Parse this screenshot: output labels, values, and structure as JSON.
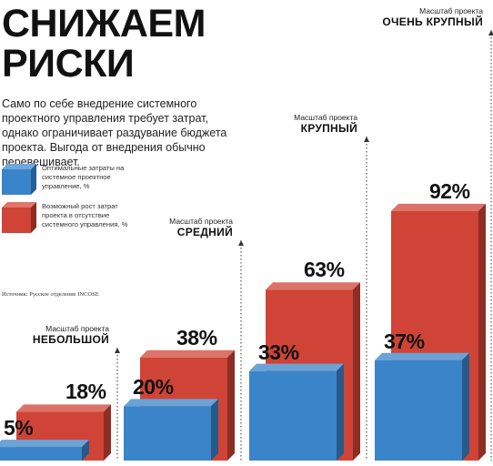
{
  "header": {
    "title": "СНИЖАЕМ\nРИСКИ",
    "intro": "Само по себе внедрение системного проектного управления требует затрат, однако ограничивает раздувание бюджета проекта. Выгода от внедрения обычно перевешивает."
  },
  "legend": [
    {
      "label": "Оптимальные затраты на системное проектное управление, %",
      "color": "#3a84c9"
    },
    {
      "label": "Возможный рост затрат проекта в отсутствие системного управления, %",
      "color": "#cf4436"
    }
  ],
  "source": "Источник: Русское отделение INCOSE",
  "chart_data": {
    "type": "bar",
    "title": "",
    "categories": [
      "НЕБОЛЬШОЙ",
      "СРЕДНИЙ",
      "КРУПНЫЙ",
      "ОЧЕНЬ КРУПНЫЙ"
    ],
    "category_caption": "Масштаб проекта",
    "series": [
      {
        "values": [
          5,
          20,
          33,
          37
        ],
        "labels": [
          "5%",
          "20%",
          "33%",
          "37%"
        ],
        "color": "#3a84c9"
      },
      {
        "values": [
          18,
          38,
          63,
          92
        ],
        "labels": [
          "18%",
          "38%",
          "63%",
          "92%"
        ],
        "color": "#cf4436"
      }
    ],
    "ylim": [
      0,
      100
    ],
    "grid": false,
    "legend_position": "left"
  }
}
